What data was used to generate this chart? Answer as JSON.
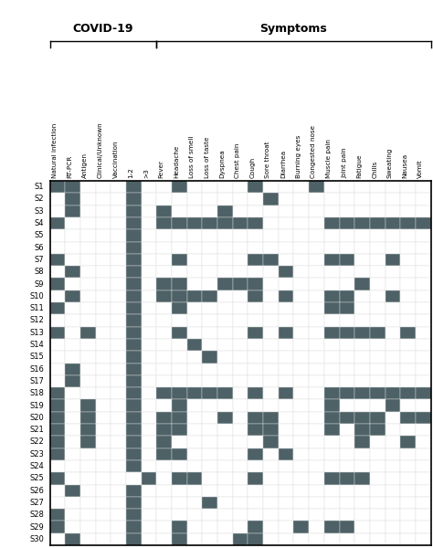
{
  "col_labels": [
    "Natural infection",
    "RT-PCR",
    "Antigen",
    "Clinical/Unknown",
    "Vaccination",
    "1-2",
    ">3",
    "Fever",
    "Headache",
    "Loss of smell",
    "Loss of taste",
    "Dyspnea",
    "Chest pain",
    "Cough",
    "Sore throat",
    "Diarrhea",
    "Burning eyes",
    "Congested nose",
    "Muscle pain",
    "Joint pain",
    "Fatigue",
    "Chills",
    "Sweating",
    "Nausea",
    "Vomit"
  ],
  "row_labels": [
    "S1",
    "S2",
    "S3",
    "S4",
    "S5",
    "S6",
    "S7",
    "S8",
    "S9",
    "S10",
    "S11",
    "S12",
    "S13",
    "S14",
    "S15",
    "S16",
    "S17",
    "S18",
    "S19",
    "S20",
    "S21",
    "S22",
    "S23",
    "S24",
    "S25",
    "S26",
    "S27",
    "S28",
    "S29",
    "S30"
  ],
  "filled_color": "#4d6166",
  "empty_color": "#ffffff",
  "border_color": "#000000",
  "covid_group_label": "COVID-19",
  "symptoms_group_label": "Symptoms",
  "data": [
    [
      1,
      1,
      0,
      0,
      0,
      1,
      0,
      0,
      1,
      0,
      0,
      0,
      0,
      1,
      0,
      0,
      0,
      1,
      0,
      0,
      0,
      0,
      0,
      0,
      0
    ],
    [
      0,
      1,
      0,
      0,
      0,
      1,
      0,
      0,
      0,
      0,
      0,
      0,
      0,
      0,
      1,
      0,
      0,
      0,
      0,
      0,
      0,
      0,
      0,
      0,
      0
    ],
    [
      0,
      1,
      0,
      0,
      0,
      1,
      0,
      1,
      0,
      0,
      0,
      1,
      0,
      0,
      0,
      0,
      0,
      0,
      0,
      0,
      0,
      0,
      0,
      0,
      0
    ],
    [
      1,
      0,
      0,
      0,
      0,
      1,
      0,
      1,
      1,
      1,
      1,
      1,
      1,
      1,
      0,
      0,
      0,
      0,
      1,
      1,
      1,
      1,
      1,
      1,
      1
    ],
    [
      0,
      0,
      0,
      0,
      0,
      1,
      0,
      0,
      0,
      0,
      0,
      0,
      0,
      0,
      0,
      0,
      0,
      0,
      0,
      0,
      0,
      0,
      0,
      0,
      0
    ],
    [
      0,
      0,
      0,
      0,
      0,
      1,
      0,
      0,
      0,
      0,
      0,
      0,
      0,
      0,
      0,
      0,
      0,
      0,
      0,
      0,
      0,
      0,
      0,
      0,
      0
    ],
    [
      1,
      0,
      0,
      0,
      0,
      1,
      0,
      0,
      1,
      0,
      0,
      0,
      0,
      1,
      1,
      0,
      0,
      0,
      1,
      1,
      0,
      0,
      1,
      0,
      0
    ],
    [
      0,
      1,
      0,
      0,
      0,
      1,
      0,
      0,
      0,
      0,
      0,
      0,
      0,
      0,
      0,
      1,
      0,
      0,
      0,
      0,
      0,
      0,
      0,
      0,
      0
    ],
    [
      1,
      0,
      0,
      0,
      0,
      1,
      0,
      1,
      1,
      0,
      0,
      1,
      1,
      1,
      0,
      0,
      0,
      0,
      0,
      0,
      1,
      0,
      0,
      0,
      0
    ],
    [
      0,
      1,
      0,
      0,
      0,
      1,
      0,
      1,
      1,
      1,
      1,
      0,
      0,
      1,
      0,
      1,
      0,
      0,
      1,
      1,
      0,
      0,
      1,
      0,
      0
    ],
    [
      1,
      0,
      0,
      0,
      0,
      1,
      0,
      0,
      1,
      0,
      0,
      0,
      0,
      0,
      0,
      0,
      0,
      0,
      1,
      1,
      0,
      0,
      0,
      0,
      0
    ],
    [
      0,
      0,
      0,
      0,
      0,
      1,
      0,
      0,
      0,
      0,
      0,
      0,
      0,
      0,
      0,
      0,
      0,
      0,
      0,
      0,
      0,
      0,
      0,
      0,
      0
    ],
    [
      1,
      0,
      1,
      0,
      0,
      1,
      0,
      0,
      1,
      0,
      0,
      0,
      0,
      1,
      0,
      1,
      0,
      0,
      1,
      1,
      1,
      1,
      0,
      1,
      0
    ],
    [
      0,
      0,
      0,
      0,
      0,
      1,
      0,
      0,
      0,
      1,
      0,
      0,
      0,
      0,
      0,
      0,
      0,
      0,
      0,
      0,
      0,
      0,
      0,
      0,
      0
    ],
    [
      0,
      0,
      0,
      0,
      0,
      1,
      0,
      0,
      0,
      0,
      1,
      0,
      0,
      0,
      0,
      0,
      0,
      0,
      0,
      0,
      0,
      0,
      0,
      0,
      0
    ],
    [
      0,
      1,
      0,
      0,
      0,
      1,
      0,
      0,
      0,
      0,
      0,
      0,
      0,
      0,
      0,
      0,
      0,
      0,
      0,
      0,
      0,
      0,
      0,
      0,
      0
    ],
    [
      0,
      1,
      0,
      0,
      0,
      1,
      0,
      0,
      0,
      0,
      0,
      0,
      0,
      0,
      0,
      0,
      0,
      0,
      0,
      0,
      0,
      0,
      0,
      0,
      0
    ],
    [
      1,
      0,
      0,
      0,
      0,
      1,
      0,
      1,
      1,
      1,
      1,
      1,
      0,
      1,
      0,
      1,
      0,
      0,
      1,
      1,
      1,
      1,
      1,
      1,
      1
    ],
    [
      1,
      0,
      1,
      0,
      0,
      1,
      0,
      0,
      1,
      0,
      0,
      0,
      0,
      0,
      0,
      0,
      0,
      0,
      1,
      0,
      0,
      0,
      1,
      0,
      0
    ],
    [
      1,
      0,
      1,
      0,
      0,
      1,
      0,
      1,
      1,
      0,
      0,
      1,
      0,
      1,
      1,
      0,
      0,
      0,
      1,
      1,
      1,
      1,
      0,
      1,
      1
    ],
    [
      1,
      0,
      1,
      0,
      0,
      1,
      0,
      1,
      1,
      0,
      0,
      0,
      0,
      1,
      1,
      0,
      0,
      0,
      1,
      0,
      1,
      1,
      0,
      0,
      0
    ],
    [
      1,
      0,
      1,
      0,
      0,
      1,
      0,
      1,
      0,
      0,
      0,
      0,
      0,
      0,
      1,
      0,
      0,
      0,
      0,
      0,
      1,
      0,
      0,
      1,
      0
    ],
    [
      1,
      0,
      0,
      0,
      0,
      1,
      0,
      1,
      1,
      0,
      0,
      0,
      0,
      1,
      0,
      1,
      0,
      0,
      0,
      0,
      0,
      0,
      0,
      0,
      0
    ],
    [
      0,
      0,
      0,
      0,
      0,
      1,
      0,
      0,
      0,
      0,
      0,
      0,
      0,
      0,
      0,
      0,
      0,
      0,
      0,
      0,
      0,
      0,
      0,
      0,
      0
    ],
    [
      1,
      0,
      0,
      0,
      0,
      0,
      1,
      0,
      1,
      1,
      0,
      0,
      0,
      1,
      0,
      0,
      0,
      0,
      1,
      1,
      1,
      0,
      0,
      0,
      0
    ],
    [
      0,
      1,
      0,
      0,
      0,
      1,
      0,
      0,
      0,
      0,
      0,
      0,
      0,
      0,
      0,
      0,
      0,
      0,
      0,
      0,
      0,
      0,
      0,
      0,
      0
    ],
    [
      0,
      0,
      0,
      0,
      0,
      1,
      0,
      0,
      0,
      0,
      1,
      0,
      0,
      0,
      0,
      0,
      0,
      0,
      0,
      0,
      0,
      0,
      0,
      0,
      0
    ],
    [
      1,
      0,
      0,
      0,
      0,
      1,
      0,
      0,
      0,
      0,
      0,
      0,
      0,
      0,
      0,
      0,
      0,
      0,
      0,
      0,
      0,
      0,
      0,
      0,
      0
    ],
    [
      1,
      0,
      0,
      0,
      0,
      1,
      0,
      0,
      1,
      0,
      0,
      0,
      0,
      1,
      0,
      0,
      1,
      0,
      1,
      1,
      0,
      0,
      0,
      0,
      0
    ],
    [
      0,
      1,
      0,
      0,
      0,
      1,
      0,
      0,
      1,
      0,
      0,
      0,
      1,
      1,
      0,
      0,
      0,
      0,
      0,
      0,
      0,
      0,
      0,
      0,
      0
    ]
  ]
}
